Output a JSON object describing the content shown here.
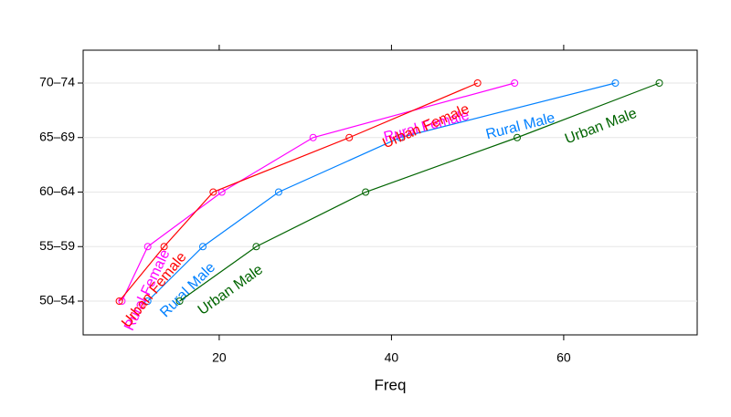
{
  "chart_data": {
    "type": "line",
    "x_label": "Freq",
    "categories": [
      "50–54",
      "55–59",
      "60–64",
      "65–69",
      "70–74"
    ],
    "series": [
      {
        "name": "Rural Male",
        "color": "#0080ff",
        "values": [
          11.7,
          18.1,
          26.9,
          41.0,
          66.0
        ]
      },
      {
        "name": "Rural Female",
        "color": "#ff00ff",
        "values": [
          8.7,
          11.7,
          20.3,
          30.9,
          54.3
        ]
      },
      {
        "name": "Urban Male",
        "color": "#006400",
        "values": [
          15.4,
          24.3,
          37.0,
          54.6,
          71.1
        ]
      },
      {
        "name": "Urban Female",
        "color": "#ff0000",
        "values": [
          8.4,
          13.6,
          19.3,
          35.1,
          50.0
        ]
      }
    ],
    "xlim": [
      4.2,
      75.5
    ],
    "xticks": [
      20,
      40,
      60
    ],
    "grid": true
  }
}
